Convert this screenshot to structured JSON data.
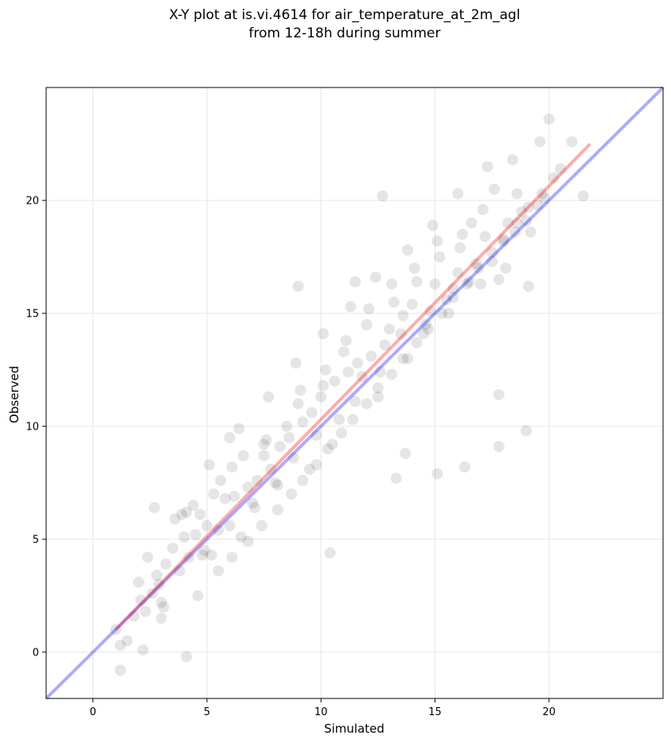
{
  "chart_data": {
    "type": "scatter",
    "title": "X-Y plot at is.vi.4614 for air_temperature_at_2m_agl",
    "subtitle": "from 12-18h during summer",
    "xlabel": "Simulated",
    "ylabel": "Observed",
    "xlim": [
      -2.05,
      25.0
    ],
    "ylim": [
      -2.05,
      25.0
    ],
    "xticks": [
      0,
      5,
      10,
      15,
      20
    ],
    "yticks": [
      0,
      5,
      10,
      15,
      20
    ],
    "grid": true,
    "legend": "none",
    "point_color": "#000000",
    "point_opacity": 0.1,
    "identity_line": {
      "x": [
        -2.05,
        25.0
      ],
      "y": [
        -2.05,
        25.0
      ],
      "color": "#0000ff",
      "opacity": 0.33
    },
    "fit_line": {
      "x": [
        1.0,
        21.8
      ],
      "y": [
        1.0,
        22.5
      ],
      "color": "#ff0000",
      "opacity": 0.33
    },
    "series": [
      {
        "x": [
          1.2,
          1.0,
          1.5,
          1.8,
          2.1,
          2.3,
          2.0,
          2.6,
          2.8,
          3.0,
          3.2,
          2.4,
          3.5,
          3.1,
          2.9,
          3.8,
          4.0,
          4.2,
          3.6,
          4.5,
          4.8,
          4.1,
          4.4,
          5.0,
          5.2,
          4.7,
          5.5,
          5.3,
          4.9,
          5.8,
          6.0,
          5.6,
          6.2,
          6.5,
          6.1,
          6.8,
          7.0,
          6.6,
          7.2,
          7.5,
          7.1,
          7.8,
          8.0,
          7.6,
          8.2,
          8.5,
          8.1,
          8.8,
          9.0,
          8.6,
          9.2,
          9.5,
          9.1,
          9.8,
          10.0,
          9.6,
          10.2,
          10.5,
          10.1,
          10.8,
          11.0,
          10.6,
          11.2,
          11.5,
          11.1,
          11.8,
          12.0,
          11.6,
          12.2,
          12.5,
          12.1,
          12.8,
          13.0,
          12.6,
          13.2,
          13.5,
          13.1,
          13.8,
          14.0,
          13.6,
          14.2,
          14.5,
          14.1,
          14.8,
          15.0,
          14.6,
          15.2,
          15.5,
          15.1,
          15.8,
          16.0,
          15.6,
          16.2,
          16.5,
          16.1,
          16.8,
          17.0,
          16.6,
          17.2,
          17.5,
          17.1,
          17.8,
          18.0,
          17.6,
          18.2,
          18.5,
          18.1,
          18.8,
          19.0,
          18.6,
          19.2,
          19.5,
          19.1,
          19.8,
          20.0,
          20.5,
          21.0,
          21.5,
          17.8,
          19.0,
          16.3,
          17.8,
          15.1,
          13.7,
          13.3,
          10.4,
          4.1,
          1.2,
          2.2,
          3.0,
          4.6,
          5.5,
          6.1,
          6.8,
          7.4,
          8.1,
          8.7,
          9.2,
          9.8,
          10.3,
          10.9,
          11.4,
          12.0,
          12.5,
          13.1,
          13.6,
          14.2,
          14.7,
          15.3,
          15.8,
          16.4,
          16.9,
          17.5,
          18.0,
          18.6,
          19.1,
          19.7,
          20.2,
          2.7,
          3.9,
          5.1,
          6.4,
          7.7,
          8.9,
          10.1,
          11.3,
          12.4,
          13.8,
          14.9,
          16.0,
          17.3,
          18.4,
          19.6,
          9.0,
          7.5,
          6.0,
          12.7,
          11.5
        ],
        "y": [
          0.3,
          1.0,
          0.5,
          1.6,
          2.3,
          1.8,
          3.1,
          2.6,
          3.4,
          2.2,
          3.9,
          4.2,
          4.6,
          2.0,
          3.0,
          3.6,
          5.1,
          4.2,
          5.9,
          5.2,
          4.3,
          6.2,
          6.5,
          5.6,
          4.3,
          6.1,
          5.4,
          7.0,
          4.5,
          6.8,
          5.6,
          7.6,
          6.9,
          5.1,
          8.2,
          7.3,
          6.6,
          8.7,
          7.6,
          9.2,
          6.4,
          8.1,
          7.5,
          9.4,
          9.1,
          10.0,
          7.4,
          8.6,
          11.0,
          9.5,
          10.2,
          8.1,
          11.6,
          9.6,
          11.3,
          10.6,
          12.5,
          9.2,
          11.8,
          10.3,
          13.3,
          12.0,
          12.4,
          11.1,
          13.8,
          12.2,
          14.5,
          12.8,
          13.1,
          11.3,
          15.2,
          13.6,
          14.3,
          12.4,
          15.5,
          14.1,
          16.3,
          13.0,
          15.4,
          14.9,
          16.4,
          14.1,
          17.0,
          15.1,
          16.3,
          14.5,
          17.5,
          15.6,
          18.2,
          16.1,
          16.8,
          15.0,
          18.5,
          16.4,
          17.9,
          17.2,
          16.3,
          19.0,
          18.4,
          17.3,
          19.6,
          16.5,
          18.2,
          20.5,
          19.0,
          18.6,
          17.0,
          19.5,
          19.1,
          20.3,
          18.6,
          19.8,
          16.2,
          20.1,
          23.6,
          21.4,
          22.6,
          20.2,
          11.4,
          9.8,
          8.2,
          9.1,
          7.9,
          8.8,
          7.7,
          4.4,
          -0.2,
          -0.8,
          0.1,
          1.5,
          2.5,
          3.6,
          4.2,
          4.9,
          5.6,
          6.3,
          7.0,
          7.6,
          8.3,
          9.0,
          9.7,
          10.3,
          11.0,
          11.7,
          12.3,
          13.0,
          13.7,
          14.3,
          15.0,
          15.7,
          16.3,
          17.0,
          17.7,
          18.3,
          19.0,
          19.7,
          20.3,
          21.0,
          6.4,
          6.1,
          8.3,
          9.9,
          11.3,
          12.8,
          14.1,
          15.3,
          16.6,
          17.8,
          18.9,
          20.3,
          21.5,
          21.8,
          22.6,
          16.2,
          8.7,
          9.5,
          20.2,
          16.4
        ]
      }
    ]
  }
}
